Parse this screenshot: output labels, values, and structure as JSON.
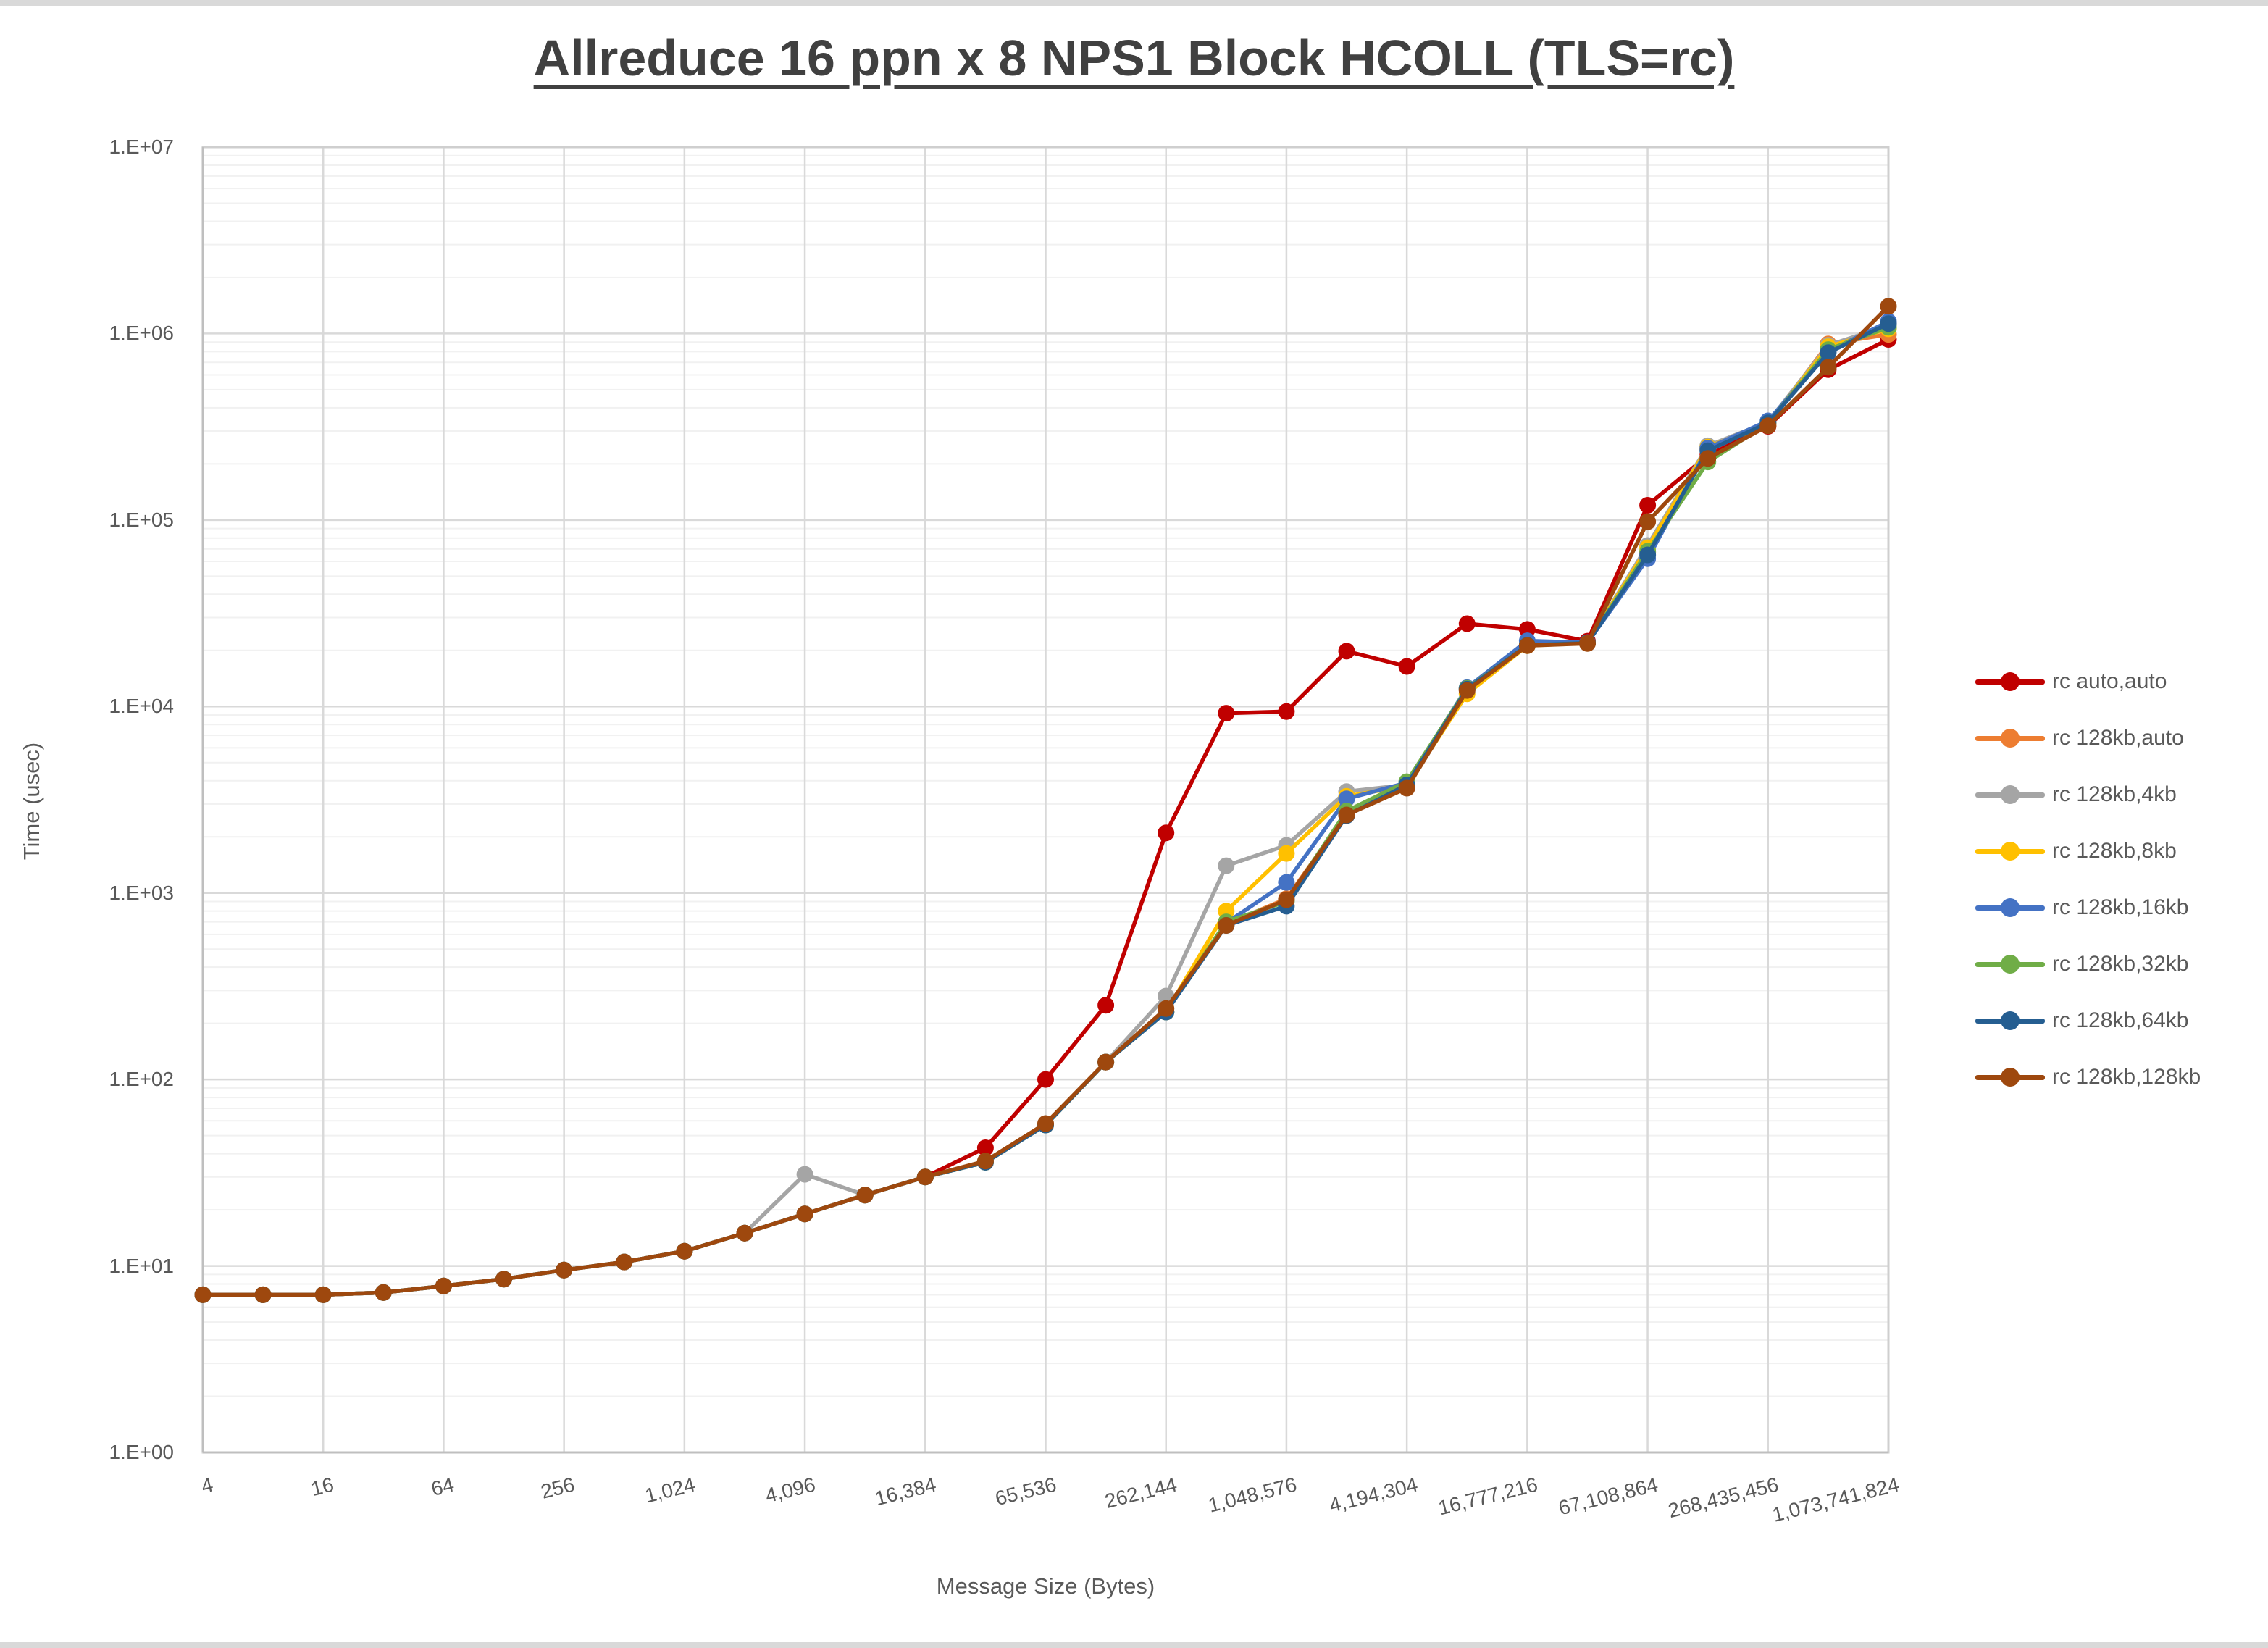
{
  "title": "Allreduce 16 ppn x 8 NPS1 Block HCOLL (TLS=rc)",
  "y_axis": {
    "title": "Time (usec)",
    "tick_labels": [
      "1.E+00",
      "1.E+01",
      "1.E+02",
      "1.E+03",
      "1.E+04",
      "1.E+05",
      "1.E+06",
      "1.E+07"
    ]
  },
  "x_axis": {
    "title": "Message Size (Bytes)",
    "tick_labels": [
      "4",
      "16",
      "64",
      "256",
      "1,024",
      "4,096",
      "16,384",
      "65,536",
      "262,144",
      "1,048,576",
      "4,194,304",
      "16,777,216",
      "67,108,864",
      "268,435,456",
      "1,073,741,824"
    ]
  },
  "legend": {
    "items": [
      {
        "label": "rc auto,auto",
        "color": "#C00000"
      },
      {
        "label": "rc 128kb,auto",
        "color": "#ED7D31"
      },
      {
        "label": "rc 128kb,4kb",
        "color": "#A5A5A5"
      },
      {
        "label": "rc 128kb,8kb",
        "color": "#FFC000"
      },
      {
        "label": "rc 128kb,16kb",
        "color": "#4472C4"
      },
      {
        "label": "rc 128kb,32kb",
        "color": "#70AD47"
      },
      {
        "label": "rc 128kb,64kb",
        "color": "#255E91"
      },
      {
        "label": "rc 128kb,128kb",
        "color": "#9E480E"
      }
    ]
  },
  "chart_data": {
    "type": "line",
    "title": "Allreduce 16 ppn x 8 NPS1 Block HCOLL (TLS=rc)",
    "xlabel": "Message Size (Bytes)",
    "ylabel": "Time (usec)",
    "x_scale": "log2",
    "y_scale": "log10",
    "ylim": [
      1,
      10000000
    ],
    "grid": {
      "major_color": "#D9D9D9",
      "minor_color": "#F1F1F1",
      "border_color": "#CFCFCF",
      "horizontal_minors": true
    },
    "legend_position": "right",
    "x": [
      4,
      8,
      16,
      32,
      64,
      128,
      256,
      512,
      1024,
      2048,
      4096,
      8192,
      16384,
      32768,
      65536,
      131072,
      262144,
      524288,
      1048576,
      2097152,
      4194304,
      8388608,
      16777216,
      33554432,
      67108864,
      134217728,
      268435456,
      536870912,
      1073741824
    ],
    "series": [
      {
        "name": "rc auto,auto",
        "color": "#C00000",
        "values": [
          7,
          7,
          7,
          7.2,
          7.8,
          8.5,
          9.5,
          10.5,
          12,
          15,
          19,
          24,
          30,
          43,
          100,
          250,
          2100,
          9200,
          9400,
          19800,
          16400,
          27800,
          25900,
          22400,
          120000,
          222000,
          318000,
          640000,
          930000
        ]
      },
      {
        "name": "rc 128kb,auto",
        "color": "#ED7D31",
        "values": [
          7,
          7,
          7,
          7.2,
          7.8,
          8.5,
          9.5,
          10.5,
          12,
          15,
          19,
          24,
          30,
          36,
          57,
          124,
          230,
          680,
          930,
          2650,
          3700,
          12300,
          21300,
          21900,
          67000,
          240000,
          328000,
          880000,
          990000
        ]
      },
      {
        "name": "rc 128kb,4kb",
        "color": "#A5A5A5",
        "values": [
          7,
          7,
          7,
          7.2,
          7.8,
          8.5,
          9.5,
          10.5,
          12,
          15,
          31,
          24,
          30,
          36,
          57,
          124,
          280,
          1400,
          1800,
          3500,
          3800,
          12500,
          21400,
          21900,
          73000,
          250000,
          335000,
          865000,
          1100000
        ]
      },
      {
        "name": "rc 128kb,8kb",
        "color": "#FFC000",
        "values": [
          7,
          7,
          7,
          7.2,
          7.8,
          8.5,
          9.5,
          10.5,
          12,
          15,
          19,
          24,
          30,
          36,
          57,
          124,
          230,
          800,
          1630,
          3300,
          3750,
          11700,
          21200,
          21900,
          71000,
          246000,
          330000,
          850000,
          1060000
        ]
      },
      {
        "name": "rc 128kb,16kb",
        "color": "#4472C4",
        "values": [
          7,
          7,
          7,
          7.2,
          7.8,
          8.5,
          9.5,
          10.5,
          12,
          15,
          19,
          24,
          30,
          36,
          57,
          124,
          230,
          690,
          1140,
          3200,
          3900,
          12600,
          22500,
          22000,
          62000,
          243000,
          340000,
          800000,
          1160000
        ]
      },
      {
        "name": "rc 128kb,32kb",
        "color": "#70AD47",
        "values": [
          7,
          7,
          7,
          7.2,
          7.8,
          8.5,
          9.5,
          10.5,
          12,
          15,
          19,
          24,
          30,
          36,
          57,
          124,
          230,
          700,
          900,
          2750,
          3950,
          12500,
          21300,
          21900,
          68000,
          205000,
          330000,
          820000,
          1080000
        ]
      },
      {
        "name": "rc 128kb,64kb",
        "color": "#255E91",
        "values": [
          7,
          7,
          7,
          7.2,
          7.8,
          8.5,
          9.5,
          10.5,
          12,
          15,
          19,
          24,
          30,
          36,
          57,
          124,
          230,
          670,
          850,
          2600,
          3800,
          12400,
          21300,
          21900,
          65000,
          235000,
          332000,
          790000,
          1130000
        ]
      },
      {
        "name": "rc 128kb,128kb",
        "color": "#9E480E",
        "values": [
          7,
          7,
          7,
          7.2,
          7.8,
          8.5,
          9.5,
          10.5,
          12,
          15,
          19,
          24,
          30,
          36.5,
          58,
          124,
          240,
          670,
          920,
          2620,
          3650,
          12200,
          21200,
          21800,
          98000,
          214000,
          320000,
          660000,
          1400000
        ]
      }
    ]
  }
}
